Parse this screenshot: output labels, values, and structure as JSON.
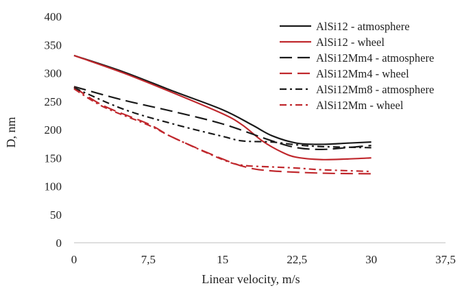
{
  "chart_data": {
    "type": "line",
    "title": "",
    "xlabel": "Linear velocity, m/s",
    "ylabel": "D, nm",
    "xlim": [
      0,
      37.5
    ],
    "ylim": [
      0,
      400
    ],
    "x_ticks": [
      "0",
      "7,5",
      "15",
      "22,5",
      "30",
      "37,5"
    ],
    "x_tick_values": [
      0,
      7.5,
      15,
      22.5,
      30,
      37.5
    ],
    "y_ticks": [
      "0",
      "50",
      "100",
      "150",
      "200",
      "250",
      "300",
      "350",
      "400"
    ],
    "y_tick_values": [
      0,
      50,
      100,
      150,
      200,
      250,
      300,
      350,
      400
    ],
    "grid": false,
    "legend_position": "top-right",
    "series": [
      {
        "name": "AlSi12 - atmosphere",
        "color": "#1a1a1a",
        "dash": "solid",
        "x": [
          0,
          5,
          10,
          15,
          18,
          20,
          22.5,
          25,
          27.5,
          30
        ],
        "y": [
          331,
          302,
          268,
          235,
          208,
          189,
          176,
          174,
          176,
          178
        ]
      },
      {
        "name": "AlSi12 - wheel",
        "color": "#c0282d",
        "dash": "solid",
        "x": [
          0,
          5,
          10,
          15,
          17,
          19,
          21,
          22.5,
          25,
          27.5,
          30
        ],
        "y": [
          331,
          300,
          265,
          228,
          208,
          180,
          160,
          151,
          147,
          148,
          150
        ]
      },
      {
        "name": "AlSi12Mm4 - atmosphere",
        "color": "#1a1a1a",
        "dash": "dash",
        "x": [
          0,
          5,
          10,
          15,
          20,
          22.5,
          25,
          27.5,
          30
        ],
        "y": [
          276,
          252,
          232,
          210,
          180,
          168,
          165,
          168,
          172
        ]
      },
      {
        "name": "AlSi12Mm4 - wheel",
        "color": "#c0282d",
        "dash": "dash",
        "x": [
          0,
          3,
          7.5,
          10,
          15,
          17.5,
          20,
          25,
          30
        ],
        "y": [
          275,
          242,
          210,
          186,
          148,
          133,
          127,
          123,
          122
        ]
      },
      {
        "name": "AlSi12Mm8 - atmosphere",
        "color": "#1a1a1a",
        "dash": "dashdot",
        "x": [
          0,
          5,
          10,
          15,
          17,
          20,
          22.5,
          25,
          30
        ],
        "y": [
          274,
          236,
          210,
          188,
          180,
          178,
          173,
          170,
          168
        ]
      },
      {
        "name": "AlSi12Mm - wheel",
        "color": "#c0282d",
        "dash": "dashdot",
        "x": [
          0,
          3,
          7.5,
          10,
          15,
          17,
          20,
          22.5,
          25,
          30
        ],
        "y": [
          272,
          240,
          208,
          186,
          147,
          137,
          134,
          132,
          129,
          126
        ]
      }
    ]
  }
}
